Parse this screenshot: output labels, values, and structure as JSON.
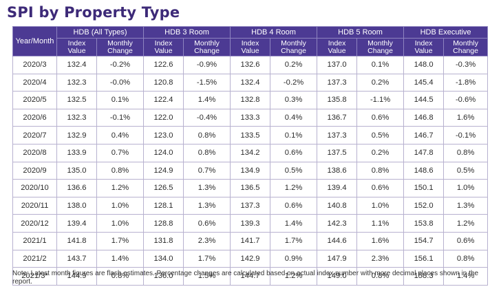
{
  "title": "SPI by Property Type",
  "table": {
    "first_header": "Year/Month",
    "groups": [
      "HDB (All Types)",
      "HDB 3 Room",
      "HDB 4 Room",
      "HDB 5 Room",
      "HDB Executive"
    ],
    "sub_headers": [
      "Index\nValue",
      "Monthly\nChange"
    ],
    "rows": [
      {
        "ym": "2020/3",
        "cells": [
          "132.4",
          "-0.2%",
          "122.6",
          "-0.9%",
          "132.6",
          "0.2%",
          "137.0",
          "0.1%",
          "148.0",
          "-0.3%"
        ]
      },
      {
        "ym": "2020/4",
        "cells": [
          "132.3",
          "-0.0%",
          "120.8",
          "-1.5%",
          "132.4",
          "-0.2%",
          "137.3",
          "0.2%",
          "145.4",
          "-1.8%"
        ]
      },
      {
        "ym": "2020/5",
        "cells": [
          "132.5",
          "0.1%",
          "122.4",
          "1.4%",
          "132.8",
          "0.3%",
          "135.8",
          "-1.1%",
          "144.5",
          "-0.6%"
        ]
      },
      {
        "ym": "2020/6",
        "cells": [
          "132.3",
          "-0.1%",
          "122.0",
          "-0.4%",
          "133.3",
          "0.4%",
          "136.7",
          "0.6%",
          "146.8",
          "1.6%"
        ]
      },
      {
        "ym": "2020/7",
        "cells": [
          "132.9",
          "0.4%",
          "123.0",
          "0.8%",
          "133.5",
          "0.1%",
          "137.3",
          "0.5%",
          "146.7",
          "-0.1%"
        ]
      },
      {
        "ym": "2020/8",
        "cells": [
          "133.9",
          "0.7%",
          "124.0",
          "0.8%",
          "134.2",
          "0.6%",
          "137.5",
          "0.2%",
          "147.8",
          "0.8%"
        ]
      },
      {
        "ym": "2020/9",
        "cells": [
          "135.0",
          "0.8%",
          "124.9",
          "0.7%",
          "134.9",
          "0.5%",
          "138.6",
          "0.8%",
          "148.6",
          "0.5%"
        ]
      },
      {
        "ym": "2020/10",
        "cells": [
          "136.6",
          "1.2%",
          "126.5",
          "1.3%",
          "136.5",
          "1.2%",
          "139.4",
          "0.6%",
          "150.1",
          "1.0%"
        ]
      },
      {
        "ym": "2020/11",
        "cells": [
          "138.0",
          "1.0%",
          "128.1",
          "1.3%",
          "137.3",
          "0.6%",
          "140.8",
          "1.0%",
          "152.0",
          "1.3%"
        ]
      },
      {
        "ym": "2020/12",
        "cells": [
          "139.4",
          "1.0%",
          "128.8",
          "0.6%",
          "139.3",
          "1.4%",
          "142.3",
          "1.1%",
          "153.8",
          "1.2%"
        ]
      },
      {
        "ym": "2021/1",
        "cells": [
          "141.8",
          "1.7%",
          "131.8",
          "2.3%",
          "141.7",
          "1.7%",
          "144.6",
          "1.6%",
          "154.7",
          "0.6%"
        ]
      },
      {
        "ym": "2021/2",
        "cells": [
          "143.7",
          "1.4%",
          "134.0",
          "1.7%",
          "142.9",
          "0.9%",
          "147.9",
          "2.3%",
          "156.1",
          "0.8%"
        ]
      },
      {
        "ym": "2021/3*",
        "cells": [
          "144.9",
          "0.8%",
          "136.0",
          "1.5%",
          "144.7",
          "1.2%",
          "149.0",
          "0.8%",
          "158.3",
          "1.4%"
        ]
      }
    ]
  },
  "note": "Note: Latest month figures are flash estimates. Percentage changes are calculated based on actual index number with more decimal places shown in the report.",
  "colors": {
    "title": "#3d2a78",
    "header_bg": "#4c3a93",
    "header_text": "#ffffff",
    "grid": "#b7b1cf"
  }
}
